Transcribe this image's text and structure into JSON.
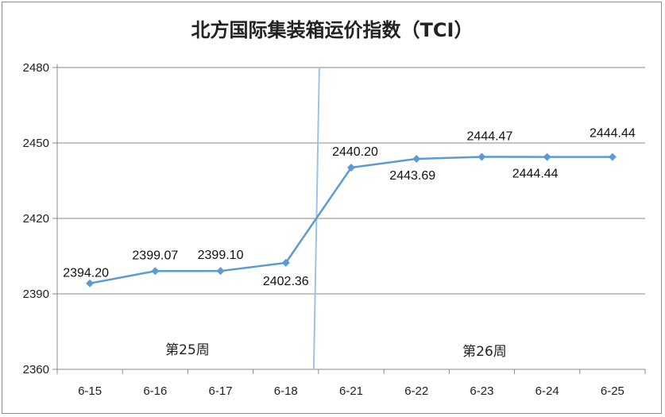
{
  "chart_data": {
    "type": "line",
    "title": "北方国际集装箱运价指数（TCI）",
    "categories": [
      "6-15",
      "6-16",
      "6-17",
      "6-18",
      "6-21",
      "6-22",
      "6-23",
      "6-24",
      "6-25"
    ],
    "series": [
      {
        "values": [
          2394.2,
          2399.07,
          2399.1,
          2402.36,
          2440.2,
          2443.69,
          2444.47,
          2444.44,
          2444.44
        ],
        "labels": [
          "2394.20",
          "2399.07",
          "2399.10",
          "2402.36",
          "2440.20",
          "2443.69",
          "2444.47",
          "2444.44",
          "2444.44"
        ],
        "color": "#5b9bd5"
      }
    ],
    "ylim": [
      2360,
      2480
    ],
    "yticks": [
      "2360",
      "2390",
      "2420",
      "2450",
      "2480"
    ],
    "grid": true,
    "annotations": [
      "第25周",
      "第26周"
    ],
    "divider_color": "#9dc3e6"
  }
}
